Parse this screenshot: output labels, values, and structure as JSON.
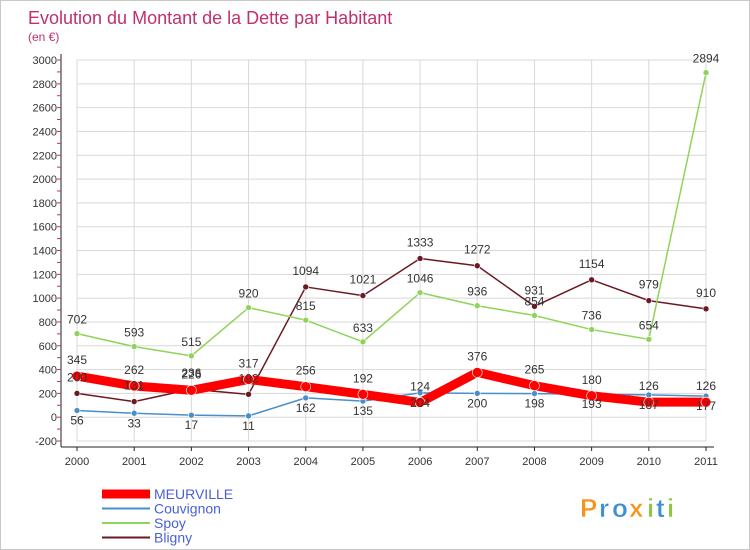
{
  "chart_data": {
    "type": "line",
    "title": "Evolution du Montant de la Dette par Habitant",
    "subtitle": "(en €)",
    "xlabel": "",
    "ylabel": "",
    "categories": [
      "2000",
      "2001",
      "2002",
      "2003",
      "2004",
      "2005",
      "2006",
      "2007",
      "2008",
      "2009",
      "2010",
      "2011"
    ],
    "ylim": [
      -200,
      3000
    ],
    "yticks": [
      -200,
      0,
      200,
      400,
      600,
      800,
      1000,
      1200,
      1400,
      1600,
      1800,
      2000,
      2200,
      2400,
      2600,
      2800,
      3000
    ],
    "grid": true,
    "legend_position": "bottom-left",
    "series": [
      {
        "name": "Bligny",
        "color": "#6b1a24",
        "values": [
          200,
          131,
          236,
          192,
          1094,
          1021,
          1333,
          1272,
          931,
          1154,
          979,
          910
        ],
        "labels": [
          "200",
          "131",
          "236",
          "192",
          "1094",
          "1021",
          "1333",
          "1272",
          "931",
          "1154",
          "979",
          "910"
        ]
      },
      {
        "name": "Spoy",
        "color": "#8fd45a",
        "values": [
          702,
          593,
          515,
          920,
          815,
          633,
          1046,
          936,
          854,
          736,
          654,
          2894
        ],
        "labels": [
          "702",
          "593",
          "515",
          "920",
          "815",
          "633",
          "1046",
          "936",
          "854",
          "736",
          "654",
          "2894"
        ]
      },
      {
        "name": "Couvignon",
        "color": "#4a90c8",
        "values": [
          56,
          33,
          17,
          11,
          162,
          135,
          204,
          200,
          198,
          193,
          187,
          177
        ],
        "labels": [
          "56",
          "33",
          "17",
          "11",
          "162",
          "135",
          "204",
          "200",
          "198",
          "193",
          "187",
          "177"
        ]
      },
      {
        "name": "MEURVILLE",
        "color": "#ff0000",
        "values": [
          345,
          262,
          226,
          317,
          256,
          192,
          124,
          376,
          265,
          180,
          126,
          126
        ],
        "labels": [
          "345",
          "262",
          "226",
          "317",
          "256",
          "192",
          "124",
          "376",
          "265",
          "180",
          "126",
          "126"
        ]
      }
    ]
  },
  "legend": [
    "MEURVILLE",
    "Couvignon",
    "Spoy",
    "Bligny"
  ],
  "brand": {
    "letters": [
      "P",
      "r",
      "o",
      "x",
      "i",
      "t",
      "i"
    ],
    "colors": [
      "#f7941d",
      "#3a8fd6",
      "#3a8fd6",
      "#f7941d",
      "#8cc63f",
      "#3a8fd6",
      "#8cc63f"
    ]
  },
  "colors": {
    "title": "#c0306e",
    "grid": "#d8d8d8",
    "axis": "#222222",
    "label": "#333333"
  }
}
